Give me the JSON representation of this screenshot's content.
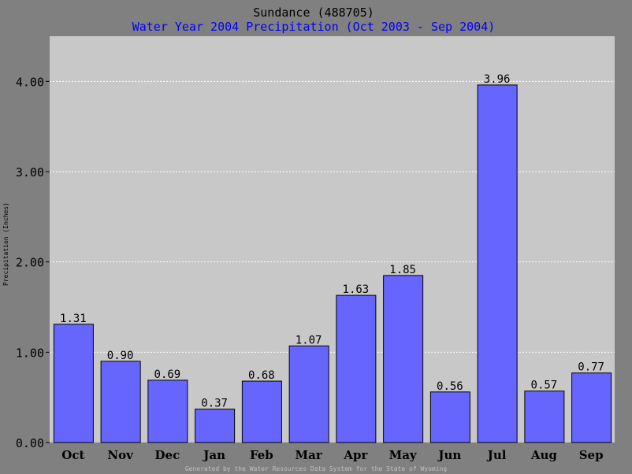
{
  "colors": {
    "background": "#808080",
    "plot_area": "#c8c8c8",
    "bar_fill": "#6666ff",
    "bar_stroke": "#000000",
    "subtitle": "#0000ff",
    "gridline": "#ffffff",
    "footer": "#c0c0c0"
  },
  "chart_data": {
    "type": "bar",
    "title": "Sundance (488705)",
    "subtitle": "Water Year 2004 Precipitation (Oct 2003 - Sep 2004)",
    "xlabel": "",
    "ylabel": "Precipitation (Inches)",
    "ylim": [
      0,
      4.5
    ],
    "yticks": [
      "0.00",
      "1.00",
      "2.00",
      "3.00",
      "4.00"
    ],
    "ytick_values": [
      0,
      1,
      2,
      3,
      4
    ],
    "grid": true,
    "categories": [
      "Oct",
      "Nov",
      "Dec",
      "Jan",
      "Feb",
      "Mar",
      "Apr",
      "May",
      "Jun",
      "Jul",
      "Aug",
      "Sep"
    ],
    "values": [
      1.31,
      0.9,
      0.69,
      0.37,
      0.68,
      1.07,
      1.63,
      1.85,
      0.56,
      3.96,
      0.57,
      0.77
    ],
    "value_labels": [
      "1.31",
      "0.90",
      "0.69",
      "0.37",
      "0.68",
      "1.07",
      "1.63",
      "1.85",
      "0.56",
      "3.96",
      "0.57",
      "0.77"
    ]
  },
  "footer": "Generated by the Water Resources Data System for the State of Wyoming"
}
